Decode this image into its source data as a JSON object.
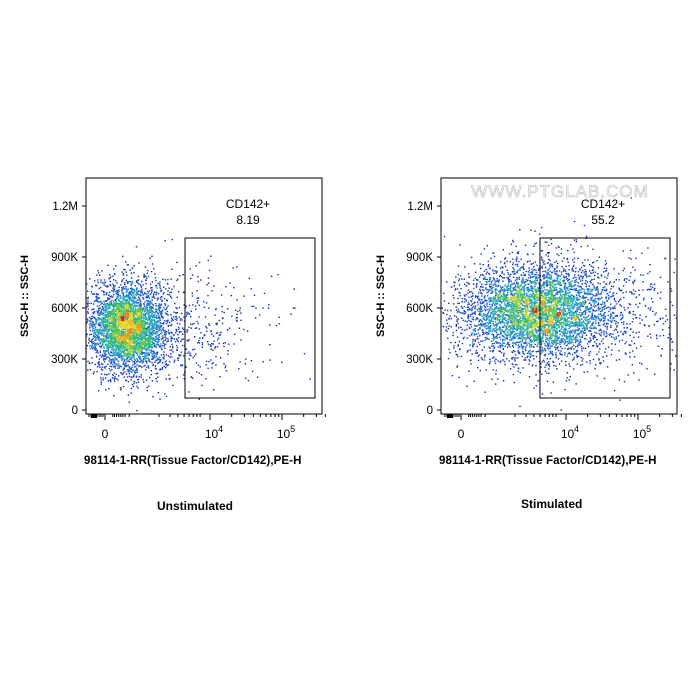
{
  "watermark": "WWW.PTGLAB.COM",
  "chart_data": [
    {
      "type": "scatter",
      "subtype": "flow-cytometry-density-plot",
      "title": "",
      "caption": "Unstimulated",
      "xlabel": "98114-1-RR(Tissue Factor/CD142),PE-H",
      "ylabel": "SSC-H :: SSC-H",
      "x_scale": "biexponential",
      "y_scale": "linear",
      "x_tick_labels": [
        "0",
        "10^4",
        "10^5"
      ],
      "y_tick_labels": [
        "0",
        "300K",
        "600K",
        "900K",
        "1.2M"
      ],
      "y_ticks": [
        0,
        300000,
        600000,
        900000,
        1200000
      ],
      "ylim": [
        0,
        1330000
      ],
      "gate": {
        "name": "CD142+",
        "percent": "8.19",
        "x_range": [
          "~6x10^3",
          "~2.5x10^5"
        ],
        "y_range": [
          80000,
          1020000
        ]
      },
      "population": {
        "center_x_label": "~10^3",
        "center_y": 520000,
        "description": "dense cluster mostly below gate x-threshold"
      }
    },
    {
      "type": "scatter",
      "subtype": "flow-cytometry-density-plot",
      "title": "",
      "caption": "Stimulated",
      "xlabel": "98114-1-RR(Tissue Factor/CD142),PE-H",
      "ylabel": "SSC-H :: SSC-H",
      "x_scale": "biexponential",
      "y_scale": "linear",
      "x_tick_labels": [
        "0",
        "10^4",
        "10^5"
      ],
      "y_tick_labels": [
        "0",
        "300K",
        "600K",
        "900K",
        "1.2M"
      ],
      "y_ticks": [
        0,
        300000,
        600000,
        900000,
        1200000
      ],
      "ylim": [
        0,
        1330000
      ],
      "gate": {
        "name": "CD142+",
        "percent": "55.2",
        "x_range": [
          "~6x10^3",
          "~2.5x10^5"
        ],
        "y_range": [
          80000,
          1020000
        ]
      },
      "population": {
        "center_x_label": "~5x10^3",
        "center_y": 580000,
        "description": "broad cluster straddling gate x-threshold"
      }
    }
  ]
}
